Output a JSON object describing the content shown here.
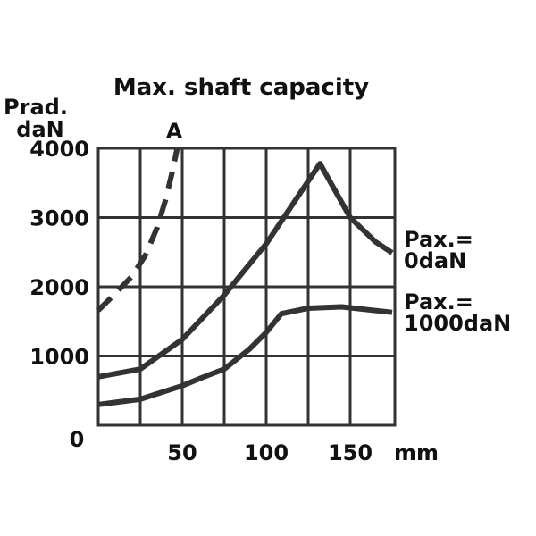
{
  "chart_data": {
    "type": "line",
    "title": "Max. shaft capacity",
    "ylabel": [
      "Prad.",
      "daN"
    ],
    "xlabel": "mm",
    "xlim": [
      0,
      175
    ],
    "ylim": [
      0,
      4000
    ],
    "grid": true,
    "x_gridlines": [
      25,
      50,
      75,
      100,
      125,
      150
    ],
    "y_gridlines": [
      1000,
      2000,
      3000
    ],
    "x_ticks": [
      {
        "v": 50,
        "label": "50"
      },
      {
        "v": 100,
        "label": "100"
      },
      {
        "v": 150,
        "label": "150"
      }
    ],
    "y_ticks": [
      {
        "v": 1000,
        "label": "1000"
      },
      {
        "v": 2000,
        "label": "2000"
      },
      {
        "v": 3000,
        "label": "3000"
      },
      {
        "v": 4000,
        "label": "4000"
      }
    ],
    "origin_label": "0",
    "series": [
      {
        "name": "A",
        "label": [
          "A"
        ],
        "style": "dashed",
        "points": [
          [
            0,
            1660
          ],
          [
            10,
            1900
          ],
          [
            20,
            2150
          ],
          [
            28,
            2450
          ],
          [
            35,
            2850
          ],
          [
            40,
            3250
          ],
          [
            44,
            3650
          ],
          [
            47,
            4000
          ]
        ]
      },
      {
        "name": "Pax.=0daN",
        "label": [
          "Pax.=",
          "0daN"
        ],
        "style": "solid",
        "points": [
          [
            0,
            700
          ],
          [
            25,
            810
          ],
          [
            50,
            1240
          ],
          [
            75,
            1880
          ],
          [
            100,
            2620
          ],
          [
            132,
            3780
          ],
          [
            150,
            3000
          ],
          [
            165,
            2650
          ],
          [
            175,
            2490
          ]
        ]
      },
      {
        "name": "Pax.=1000daN",
        "label": [
          "Pax.=",
          "1000daN"
        ],
        "style": "solid",
        "points": [
          [
            0,
            300
          ],
          [
            25,
            375
          ],
          [
            50,
            570
          ],
          [
            62,
            690
          ],
          [
            75,
            810
          ],
          [
            90,
            1100
          ],
          [
            100,
            1340
          ],
          [
            109,
            1610
          ],
          [
            125,
            1690
          ],
          [
            145,
            1710
          ],
          [
            175,
            1630
          ]
        ]
      }
    ]
  }
}
